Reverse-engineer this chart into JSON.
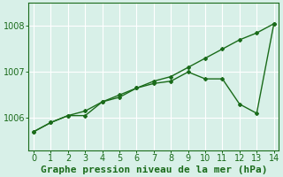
{
  "xlabel": "Graphe pression niveau de la mer (hPa)",
  "x": [
    0,
    1,
    2,
    3,
    4,
    5,
    6,
    7,
    8,
    9,
    10,
    11,
    12,
    13,
    14
  ],
  "y_smooth": [
    1005.7,
    1005.9,
    1006.05,
    1006.15,
    1006.35,
    1006.5,
    1006.65,
    1006.8,
    1006.9,
    1007.1,
    1007.3,
    1007.5,
    1007.7,
    1007.85,
    1008.05
  ],
  "y_actual": [
    1005.7,
    1005.9,
    1006.05,
    1006.05,
    1006.35,
    1006.45,
    1006.65,
    1006.75,
    1006.8,
    1007.0,
    1006.85,
    1006.85,
    1006.3,
    1006.1,
    1008.05
  ],
  "ylim_min": 1005.3,
  "ylim_max": 1008.5,
  "yticks": [
    1006,
    1007,
    1008
  ],
  "xticks": [
    0,
    1,
    2,
    3,
    4,
    5,
    6,
    7,
    8,
    9,
    10,
    11,
    12,
    13,
    14
  ],
  "line_color": "#1a6b1a",
  "bg_color": "#d8f0e8",
  "grid_color": "#b0ddc8",
  "text_color": "#1a6b1a",
  "xlabel_fontsize": 8,
  "tick_fontsize": 7
}
